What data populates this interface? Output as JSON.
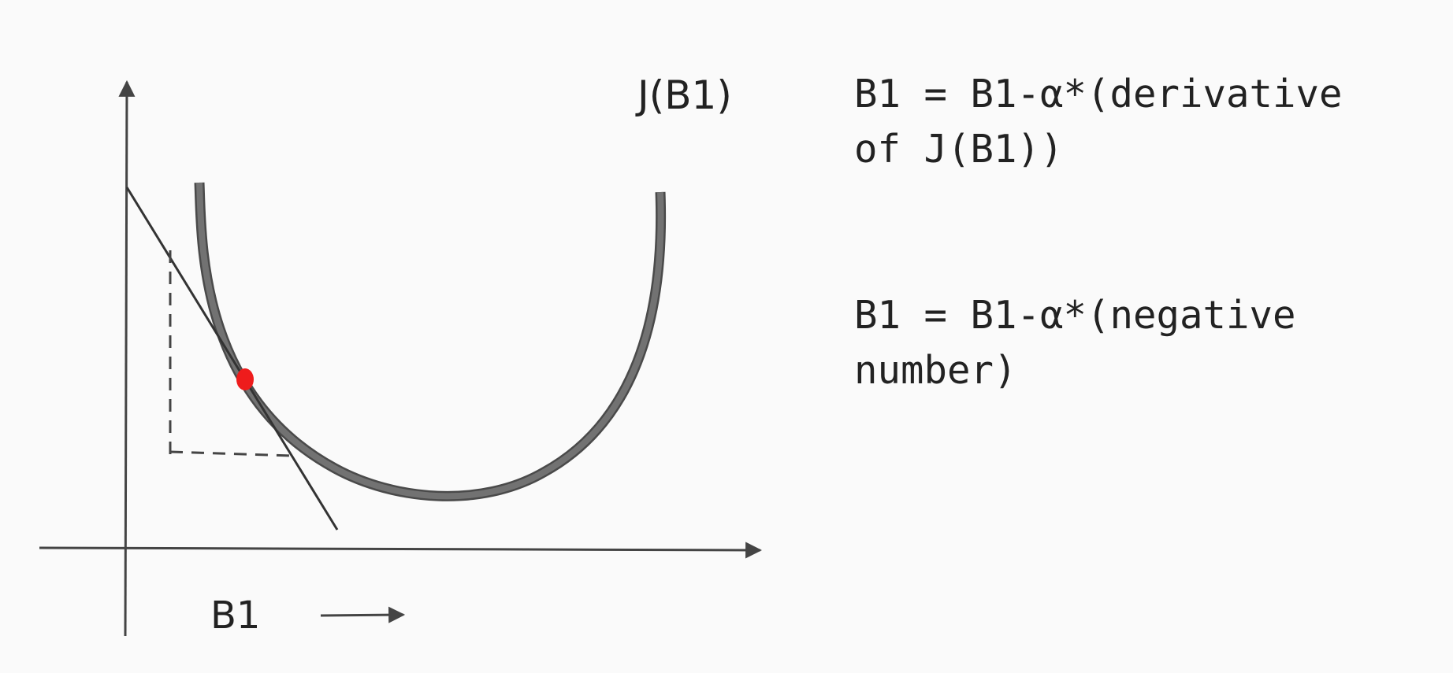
{
  "diagram": {
    "curve_label": "J(B1)",
    "axis_label": "B1",
    "colors": {
      "axis": "#444444",
      "curve": "#6a6a6a",
      "curve_outline": "#4a4a4a",
      "tangent": "#333333",
      "point": "#ee1c1c"
    }
  },
  "formulas": [
    {
      "lines": [
        "B1 = B1-α*(derivative",
        "of J(B1))"
      ]
    },
    {
      "lines": [
        "B1 = B1-α*(negative",
        "number)"
      ]
    }
  ]
}
